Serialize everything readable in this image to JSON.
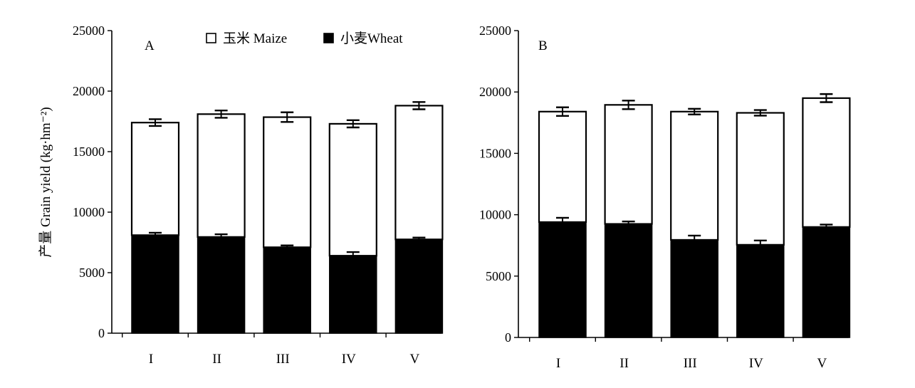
{
  "chart_data": {
    "type": "bar",
    "stacked": true,
    "ylabel": "产量 Grain yield (kg·hm⁻²)",
    "legend": {
      "placement": "top-center",
      "items": [
        {
          "label": "玉米 Maize",
          "color": "#ffffff"
        },
        {
          "label": "小麦Wheat",
          "color": "#000000"
        }
      ]
    },
    "panels": [
      {
        "label": "A",
        "categories": [
          "I",
          "II",
          "III",
          "IV",
          "V"
        ],
        "ylim": [
          0,
          25000
        ],
        "yticks": [
          "0",
          "5000",
          "10000",
          "15000",
          "20000",
          "25000"
        ],
        "series": [
          {
            "name": "小麦Wheat",
            "color": "#000000",
            "values": [
              8100,
              7950,
              7100,
              6400,
              7750
            ],
            "errors": [
              200,
              220,
              150,
              300,
              150
            ]
          },
          {
            "name": "玉米 Maize",
            "color": "#ffffff",
            "values": [
              9300,
              10150,
              10750,
              10900,
              11050
            ],
            "errors": [
              280,
              300,
              400,
              300,
              300
            ]
          }
        ]
      },
      {
        "label": "B",
        "categories": [
          "I",
          "II",
          "III",
          "IV",
          "V"
        ],
        "ylim": [
          0,
          25000
        ],
        "yticks": [
          "0",
          "5000",
          "10000",
          "15000",
          "20000",
          "25000"
        ],
        "series": [
          {
            "name": "小麦Wheat",
            "color": "#000000",
            "values": [
              9400,
              9250,
              7950,
              7550,
              9000
            ],
            "errors": [
              350,
              200,
              350,
              350,
              200
            ]
          },
          {
            "name": "玉米 Maize",
            "color": "#ffffff",
            "values": [
              9000,
              9700,
              10450,
              10750,
              10500
            ],
            "errors": [
              350,
              350,
              230,
              230,
              330
            ]
          }
        ]
      }
    ]
  }
}
